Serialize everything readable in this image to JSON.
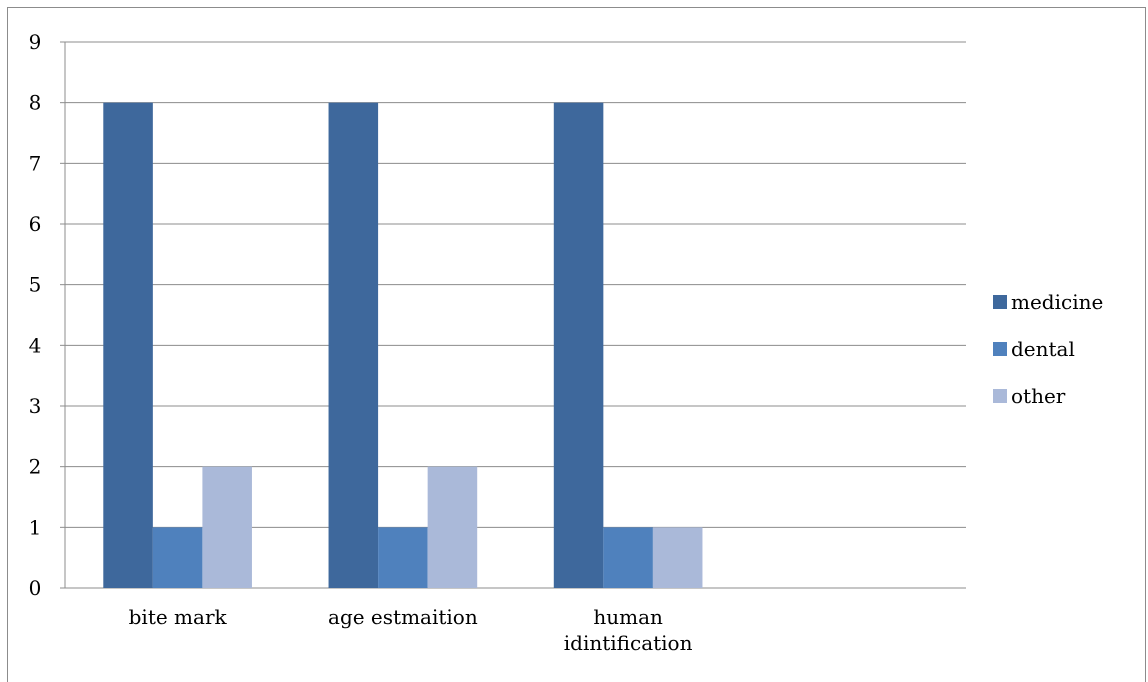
{
  "chart_data": {
    "type": "bar",
    "categories": [
      "bite mark",
      "age estmaition",
      "human idintification"
    ],
    "category_label_lines": [
      [
        "bite mark"
      ],
      [
        "age estmaition"
      ],
      [
        "human",
        "idintification"
      ]
    ],
    "slot_count": 4,
    "series": [
      {
        "name": "medicine",
        "values": [
          8,
          8,
          8
        ],
        "color": "#3e689c"
      },
      {
        "name": "dental",
        "values": [
          1,
          1,
          1
        ],
        "color": "#4f81bd"
      },
      {
        "name": "other",
        "values": [
          2,
          2,
          1
        ],
        "color": "#aab9d9"
      }
    ],
    "ylim": [
      0,
      9
    ],
    "yticks": [
      "0",
      "1",
      "2",
      "3",
      "4",
      "5",
      "6",
      "7",
      "8",
      "9"
    ],
    "grid": true,
    "legend": "right",
    "title": "",
    "xlabel": "",
    "ylabel": ""
  }
}
